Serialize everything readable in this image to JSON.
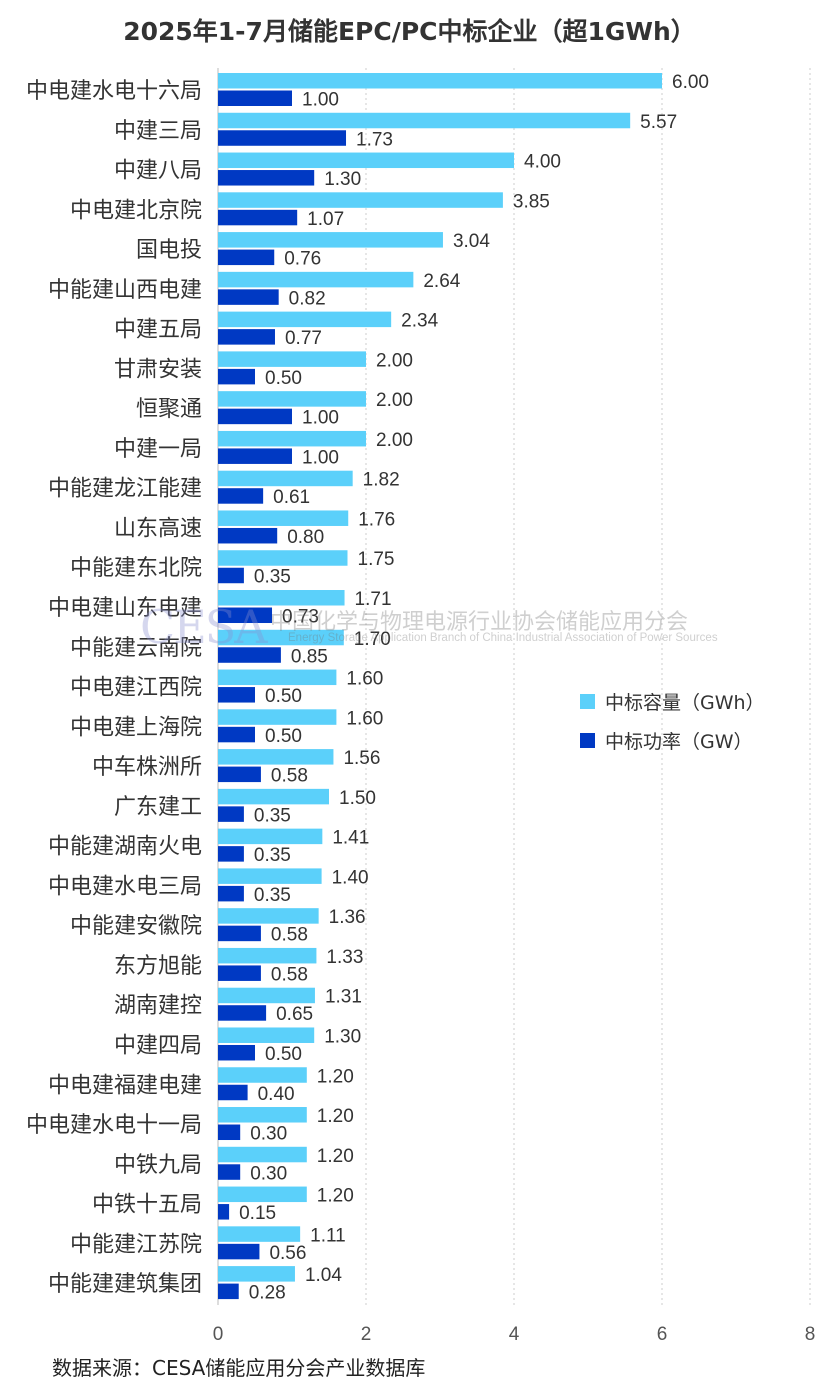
{
  "chart_data": {
    "type": "bar",
    "orientation": "horizontal",
    "title": "2025年1-7月储能EPC/PC中标企业（超1GWh）",
    "categories": [
      "中电建水电十六局",
      "中建三局",
      "中建八局",
      "中电建北京院",
      "国电投",
      "中能建山西电建",
      "中建五局",
      "甘肃安装",
      "恒聚通",
      "中建一局",
      "中能建龙江能建",
      "山东高速",
      "中能建东北院",
      "中电建山东电建",
      "中能建云南院",
      "中电建江西院",
      "中电建上海院",
      "中车株洲所",
      "广东建工",
      "中能建湖南火电",
      "中电建水电三局",
      "中能建安徽院",
      "东方旭能",
      "湖南建控",
      "中建四局",
      "中电建福建电建",
      "中电建水电十一局",
      "中铁九局",
      "中铁十五局",
      "中能建江苏院",
      "中能建建筑集团"
    ],
    "series": [
      {
        "name": "中标容量（GWh）",
        "color": "#5BD0FA",
        "values": [
          6.0,
          5.57,
          4.0,
          3.85,
          3.04,
          2.64,
          2.34,
          2.0,
          2.0,
          2.0,
          1.82,
          1.76,
          1.75,
          1.71,
          1.7,
          1.6,
          1.6,
          1.56,
          1.5,
          1.41,
          1.4,
          1.36,
          1.33,
          1.31,
          1.3,
          1.2,
          1.2,
          1.2,
          1.2,
          1.11,
          1.04
        ]
      },
      {
        "name": "中标功率（GW）",
        "color": "#0039C3",
        "values": [
          1.0,
          1.73,
          1.3,
          1.07,
          0.76,
          0.82,
          0.77,
          0.5,
          1.0,
          1.0,
          0.61,
          0.8,
          0.35,
          0.73,
          0.85,
          0.5,
          0.5,
          0.58,
          0.35,
          0.35,
          0.35,
          0.58,
          0.58,
          0.65,
          0.5,
          0.4,
          0.3,
          0.3,
          0.15,
          0.56,
          0.28
        ]
      }
    ],
    "xlim": [
      0,
      8
    ],
    "xticks": [
      "0",
      "2",
      "4",
      "6",
      "8"
    ],
    "grid": true,
    "legend_position": "right-middle",
    "xlabel": "",
    "ylabel": ""
  },
  "source": "数据来源：CESA储能应用分会产业数据库",
  "watermark": {
    "logo": "CESA",
    "cn": "中国化学与物理电源行业协会储能应用分会",
    "en": "Energy Storage Application Branch of China Industrial Association of Power Sources"
  }
}
